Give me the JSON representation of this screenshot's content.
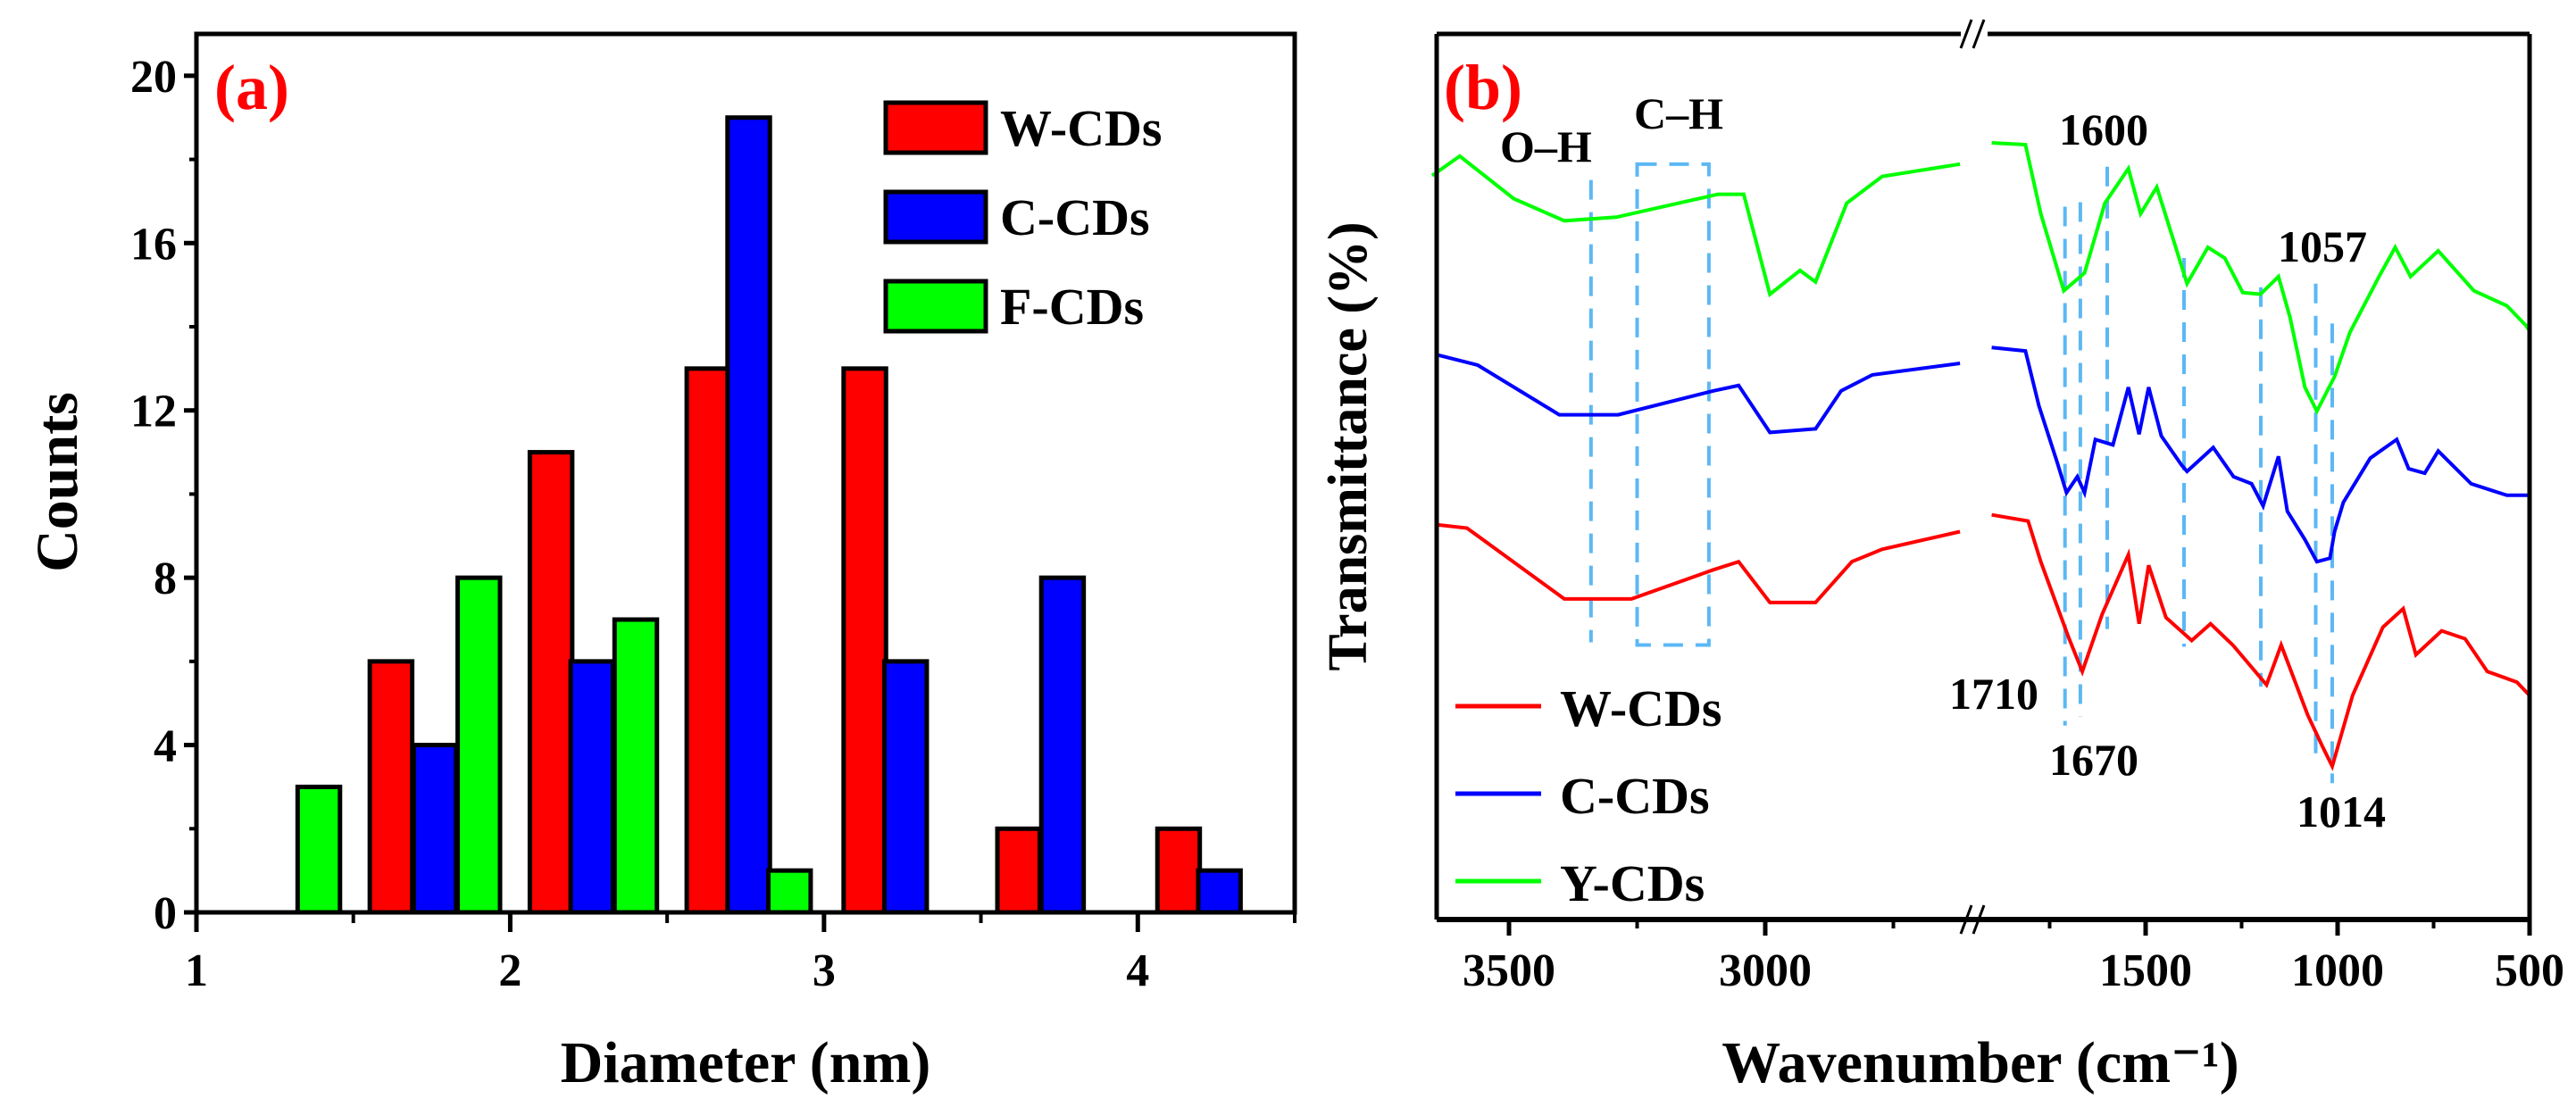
{
  "chart_data": [
    {
      "panel_label": "(a)",
      "type": "bar",
      "xlabel": "Diameter (nm)",
      "ylabel": "Counts",
      "xlim": [
        1,
        4.5
      ],
      "ylim": [
        0,
        21
      ],
      "xticks": [
        "1",
        "2",
        "3",
        "4"
      ],
      "yticks": [
        "0",
        "4",
        "8",
        "12",
        "16",
        "20"
      ],
      "bar_width": 0.135,
      "legend_position": "top-right",
      "series": [
        {
          "name": "W-CDs",
          "color": "#ff0000",
          "x": [
            1.62,
            2.13,
            2.63,
            3.13,
            3.62,
            4.13
          ],
          "values": [
            6,
            11,
            13,
            13,
            2,
            2
          ]
        },
        {
          "name": "C-CDs",
          "color": "#0000ff",
          "x": [
            1.76,
            2.26,
            2.76,
            3.26,
            3.76,
            4.26
          ],
          "values": [
            4,
            6,
            19,
            6,
            8,
            1
          ]
        },
        {
          "name": "F-CDs",
          "color": "#00ff00",
          "x": [
            1.39,
            1.9,
            2.4,
            2.89
          ],
          "values": [
            3,
            8,
            7,
            1
          ]
        }
      ]
    },
    {
      "panel_label": "(b)",
      "type": "line",
      "xlabel": "Wavenumber (cm⁻¹)",
      "ylabel": "Transmittance (%)",
      "x_segments": [
        [
          3650,
          2620
        ],
        [
          1950,
          500
        ]
      ],
      "ylim": [
        0,
        100
      ],
      "xticks": [
        "3500",
        "3000",
        "1500",
        "1000",
        "500"
      ],
      "legend_position": "bottom-left",
      "series": [
        {
          "name": "W-CDs",
          "color": "#ff0000",
          "points": [
            [
              3643,
              44.6
            ],
            [
              3582,
              44.2
            ],
            [
              3392,
              36.2
            ],
            [
              3261,
              36.2
            ],
            [
              3101,
              39.5
            ],
            [
              3052,
              40.4
            ],
            [
              2991,
              35.8
            ],
            [
              2902,
              35.8
            ],
            [
              2831,
              40.4
            ],
            [
              2772,
              41.8
            ],
            [
              2620,
              43.8
            ],
            null,
            [
              1901,
              45.7
            ],
            [
              1806,
              45.0
            ],
            [
              1773,
              40.4
            ],
            [
              1701,
              31.9
            ],
            [
              1665,
              28.0
            ],
            [
              1613,
              34.5
            ],
            [
              1545,
              41.2
            ],
            [
              1517,
              33.4
            ],
            [
              1492,
              40.0
            ],
            [
              1447,
              34.1
            ],
            [
              1380,
              31.5
            ],
            [
              1331,
              33.4
            ],
            [
              1273,
              31.0
            ],
            [
              1185,
              26.5
            ],
            [
              1147,
              31.0
            ],
            [
              1078,
              23.1
            ],
            [
              1040,
              19.6
            ],
            [
              1014,
              17.3
            ],
            [
              961,
              25.3
            ],
            [
              882,
              33.0
            ],
            [
              829,
              35.1
            ],
            [
              796,
              29.9
            ],
            [
              729,
              32.6
            ],
            [
              668,
              31.7
            ],
            [
              610,
              28.0
            ],
            [
              533,
              26.8
            ],
            [
              500,
              25.3
            ]
          ]
        },
        {
          "name": "C-CDs",
          "color": "#0000ff",
          "points": [
            [
              3643,
              63.8
            ],
            [
              3561,
              62.6
            ],
            [
              3402,
              57.0
            ],
            [
              3287,
              57.0
            ],
            [
              3101,
              59.7
            ],
            [
              3052,
              60.3
            ],
            [
              2991,
              55.0
            ],
            [
              2902,
              55.4
            ],
            [
              2852,
              59.7
            ],
            [
              2791,
              61.5
            ],
            [
              2620,
              62.8
            ],
            null,
            [
              1901,
              64.6
            ],
            [
              1813,
              64.2
            ],
            [
              1778,
              58.0
            ],
            [
              1731,
              51.7
            ],
            [
              1706,
              48.2
            ],
            [
              1678,
              50.0
            ],
            [
              1659,
              48.2
            ],
            [
              1631,
              54.2
            ],
            [
              1585,
              53.6
            ],
            [
              1545,
              60.1
            ],
            [
              1517,
              54.8
            ],
            [
              1492,
              60.1
            ],
            [
              1459,
              54.6
            ],
            [
              1406,
              51.3
            ],
            [
              1392,
              50.6
            ],
            [
              1324,
              53.3
            ],
            [
              1271,
              50.0
            ],
            [
              1224,
              49.2
            ],
            [
              1194,
              46.7
            ],
            [
              1154,
              52.3
            ],
            [
              1131,
              46.1
            ],
            [
              1085,
              42.9
            ],
            [
              1054,
              40.4
            ],
            [
              1020,
              40.8
            ],
            [
              1008,
              43.8
            ],
            [
              985,
              47.1
            ],
            [
              915,
              52.1
            ],
            [
              846,
              54.2
            ],
            [
              815,
              50.9
            ],
            [
              773,
              50.4
            ],
            [
              738,
              52.9
            ],
            [
              652,
              49.2
            ],
            [
              559,
              47.9
            ],
            [
              500,
              47.9
            ]
          ]
        },
        {
          "name": "Y-CDs",
          "color": "#00ff00",
          "points": [
            [
              3650,
              84.0
            ],
            [
              3596,
              86.2
            ],
            [
              3491,
              81.4
            ],
            [
              3392,
              78.9
            ],
            [
              3291,
              79.3
            ],
            [
              3092,
              81.9
            ],
            [
              3042,
              81.9
            ],
            [
              2991,
              70.6
            ],
            [
              2932,
              73.3
            ],
            [
              2902,
              72.0
            ],
            [
              2841,
              80.9
            ],
            [
              2772,
              83.9
            ],
            [
              2620,
              85.3
            ],
            null,
            [
              1901,
              87.7
            ],
            [
              1813,
              87.5
            ],
            [
              1773,
              79.7
            ],
            [
              1713,
              71.0
            ],
            [
              1659,
              73.0
            ],
            [
              1606,
              80.9
            ],
            [
              1545,
              84.8
            ],
            [
              1513,
              79.7
            ],
            [
              1471,
              82.7
            ],
            [
              1431,
              77.2
            ],
            [
              1392,
              71.8
            ],
            [
              1338,
              75.9
            ],
            [
              1294,
              74.7
            ],
            [
              1247,
              70.8
            ],
            [
              1201,
              70.6
            ],
            [
              1154,
              72.6
            ],
            [
              1124,
              68.0
            ],
            [
              1085,
              60.1
            ],
            [
              1054,
              57.4
            ],
            [
              1008,
              61.3
            ],
            [
              968,
              66.3
            ],
            [
              892,
              72.6
            ],
            [
              850,
              75.9
            ],
            [
              810,
              72.6
            ],
            [
              738,
              75.5
            ],
            [
              645,
              71.0
            ],
            [
              559,
              69.3
            ],
            [
              510,
              67.1
            ],
            [
              500,
              66.5
            ]
          ]
        }
      ],
      "marker_lines": [
        {
          "wn": 3340,
          "t_range": [
            83.5,
            31.3
          ]
        },
        {
          "wn": 1710,
          "t_range": [
            80.5,
            21.9
          ]
        },
        {
          "wn": 1670,
          "t_range": [
            81.0,
            22.9
          ]
        },
        {
          "wn": 1600,
          "t_range": [
            85.0,
            32.8
          ]
        },
        {
          "wn": 1400,
          "t_range": [
            74.7,
            30.8
          ]
        },
        {
          "wn": 1200,
          "t_range": [
            71.4,
            26.3
          ]
        },
        {
          "wn": 1057,
          "t_range": [
            71.8,
            17.5
          ]
        },
        {
          "wn": 1014,
          "t_range": [
            67.3,
            15.4
          ]
        }
      ],
      "marker_box": {
        "wn_range": [
          3250,
          3110
        ],
        "t_range": [
          85.3,
          31.0
        ]
      },
      "annotations": [
        "O–H",
        "C–H",
        "1600",
        "1057",
        "1710",
        "1670",
        "1014"
      ],
      "marker_color": "#5bb8f5"
    }
  ]
}
